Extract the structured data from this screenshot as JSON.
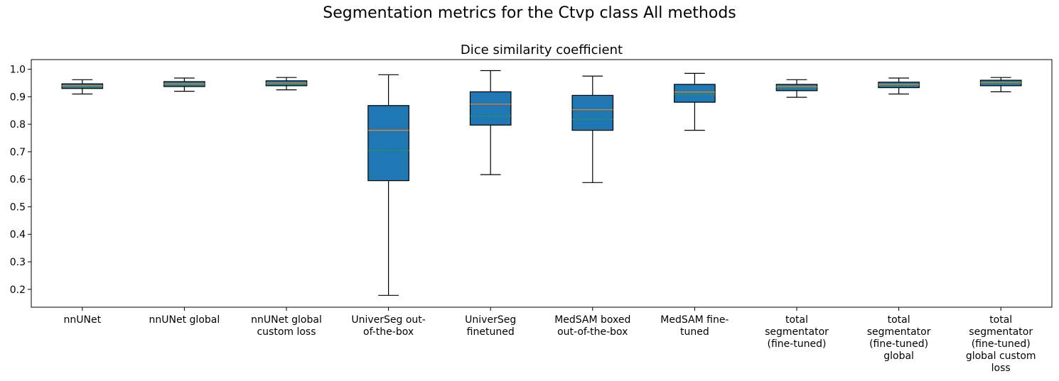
{
  "suptitle": "Segmentation metrics for the Ctvp class All methods",
  "chart_data": {
    "type": "box",
    "title": "Dice similarity coefficient",
    "xlabel": "",
    "ylabel": "",
    "ylim": [
      0.135,
      1.035
    ],
    "yticks": [
      0.2,
      0.3,
      0.4,
      0.5,
      0.6,
      0.7,
      0.8,
      0.9,
      1.0
    ],
    "ytick_labels": [
      "0.2",
      "0.3",
      "0.4",
      "0.5",
      "0.6",
      "0.7",
      "0.8",
      "0.9",
      "1.0"
    ],
    "grid": false,
    "legend": "none",
    "box_color": "#1f77b4",
    "median_color": "#ff7f0e",
    "mean_color": "#2ca02c",
    "categories": [
      [
        "nnUNet"
      ],
      [
        "nnUNet global"
      ],
      [
        "nnUNet global",
        "custom loss"
      ],
      [
        "UniverSeg out-",
        "of-the-box"
      ],
      [
        "UniverSeg",
        "finetuned"
      ],
      [
        "MedSAM boxed",
        "out-of-the-box"
      ],
      [
        "MedSAM fine-",
        "tuned"
      ],
      [
        "total",
        "segmentator",
        "(fine-tuned)"
      ],
      [
        "total",
        "segmentator",
        "(fine-tuned)",
        "global"
      ],
      [
        "total",
        "segmentator",
        "(fine-tuned)",
        "global custom",
        "loss"
      ]
    ],
    "boxes": [
      {
        "whislo": 0.91,
        "q1": 0.93,
        "med": 0.94,
        "mean": 0.937,
        "q3": 0.947,
        "whishi": 0.962
      },
      {
        "whislo": 0.92,
        "q1": 0.937,
        "med": 0.947,
        "mean": 0.943,
        "q3": 0.955,
        "whishi": 0.968
      },
      {
        "whislo": 0.925,
        "q1": 0.94,
        "med": 0.95,
        "mean": 0.945,
        "q3": 0.958,
        "whishi": 0.97
      },
      {
        "whislo": 0.178,
        "q1": 0.595,
        "med": 0.778,
        "mean": 0.705,
        "q3": 0.868,
        "whishi": 0.98
      },
      {
        "whislo": 0.617,
        "q1": 0.797,
        "med": 0.873,
        "mean": 0.83,
        "q3": 0.918,
        "whishi": 0.995
      },
      {
        "whislo": 0.588,
        "q1": 0.778,
        "med": 0.853,
        "mean": 0.818,
        "q3": 0.905,
        "whishi": 0.975
      },
      {
        "whislo": 0.778,
        "q1": 0.88,
        "med": 0.917,
        "mean": 0.908,
        "q3": 0.945,
        "whishi": 0.985
      },
      {
        "whislo": 0.898,
        "q1": 0.922,
        "med": 0.937,
        "mean": 0.932,
        "q3": 0.945,
        "whishi": 0.962
      },
      {
        "whislo": 0.91,
        "q1": 0.933,
        "med": 0.945,
        "mean": 0.941,
        "q3": 0.953,
        "whishi": 0.968
      },
      {
        "whislo": 0.918,
        "q1": 0.94,
        "med": 0.952,
        "mean": 0.948,
        "q3": 0.96,
        "whishi": 0.97
      }
    ]
  }
}
